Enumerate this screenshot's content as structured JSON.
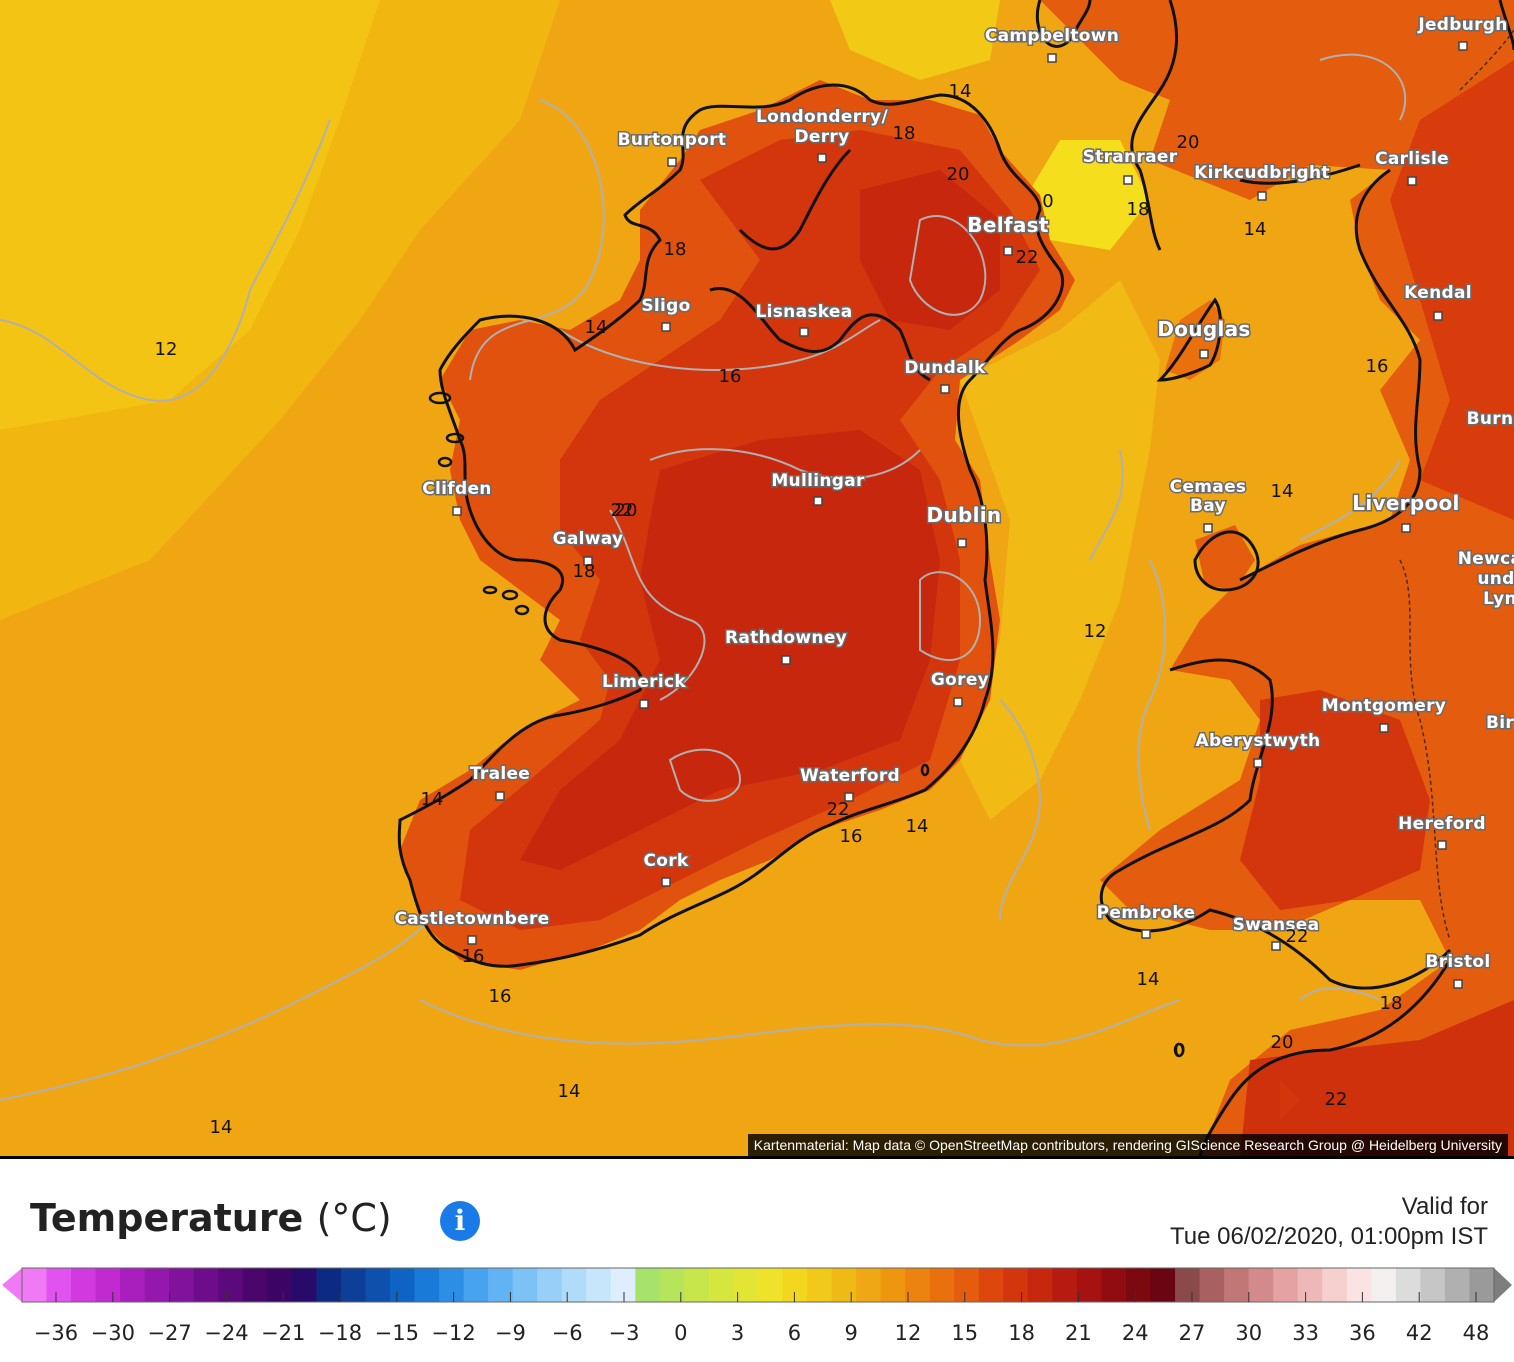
{
  "map": {
    "attribution": "Kartenmaterial: Map data © OpenStreetMap contributors, rendering GIScience Research Group @ Heidelberg University",
    "cities": [
      {
        "name": "Campbeltown"
      },
      {
        "name": "Jedburgh"
      },
      {
        "name": "Londonderry/"
      },
      {
        "name": "Derry"
      },
      {
        "name": "Burtonport"
      },
      {
        "name": "Stranraer"
      },
      {
        "name": "Kirkcudbright"
      },
      {
        "name": "Carlisle"
      },
      {
        "name": "Belfast"
      },
      {
        "name": "Sligo"
      },
      {
        "name": "Lisnaskea"
      },
      {
        "name": "Douglas"
      },
      {
        "name": "Kendal"
      },
      {
        "name": "Dundalk"
      },
      {
        "name": "Burn"
      },
      {
        "name": "Clifden"
      },
      {
        "name": "Mullingar"
      },
      {
        "name": "Cemaes"
      },
      {
        "name": "Bay"
      },
      {
        "name": "Liverpool"
      },
      {
        "name": "Galway"
      },
      {
        "name": "Dublin"
      },
      {
        "name": "Newca"
      },
      {
        "name": "und"
      },
      {
        "name": "Lyn"
      },
      {
        "name": "Rathdowney"
      },
      {
        "name": "Limerick"
      },
      {
        "name": "Gorey"
      },
      {
        "name": "Montgomery"
      },
      {
        "name": "Bir"
      },
      {
        "name": "Aberystwyth"
      },
      {
        "name": "Tralee"
      },
      {
        "name": "Waterford"
      },
      {
        "name": "Hereford"
      },
      {
        "name": "Cork"
      },
      {
        "name": "Pembroke"
      },
      {
        "name": "Swansea"
      },
      {
        "name": "Castletownbere"
      },
      {
        "name": "Bristol"
      }
    ],
    "contour_labels": [
      "12",
      "12",
      "14",
      "14",
      "14",
      "14",
      "14",
      "14",
      "14",
      "14",
      "14",
      "16",
      "16",
      "16",
      "16",
      "16",
      "18",
      "18",
      "18",
      "18",
      "18",
      "20",
      "20",
      "20",
      "20",
      "22",
      "22",
      "22",
      "22",
      "22",
      "0",
      "0"
    ]
  },
  "legend": {
    "title": "Temperature",
    "unit": "(°C)",
    "info_icon": "info-icon",
    "valid_line1": "Valid for",
    "valid_line2": "Tue 06/02/2020, 01:00pm IST",
    "tick_labels": [
      "−36",
      "−30",
      "−27",
      "−24",
      "−21",
      "−18",
      "−15",
      "−12",
      "−9",
      "−6",
      "−3",
      "0",
      "3",
      "6",
      "9",
      "12",
      "15",
      "18",
      "21",
      "24",
      "27",
      "30",
      "33",
      "36",
      "42",
      "48"
    ],
    "colors": [
      "#f07af5",
      "#e252f0",
      "#d23ae0",
      "#c02ad0",
      "#a91fbe",
      "#9418ad",
      "#80129c",
      "#6e0d8c",
      "#5c097c",
      "#4a066d",
      "#3c0464",
      "#270a6a",
      "#0d2a82",
      "#0d3e98",
      "#0d50ad",
      "#0e64c4",
      "#1a7ad8",
      "#2d8ee6",
      "#47a2ef",
      "#62b3f3",
      "#7cc2f5",
      "#96cff7",
      "#b0dcf9",
      "#c8e6fb",
      "#dfeefc",
      "#a7e36b",
      "#b6e45a",
      "#c6e64b",
      "#d5e63f",
      "#e2e534",
      "#eee22a",
      "#f3d71f",
      "#f1c91a",
      "#f0ba16",
      "#efa813",
      "#ee9610",
      "#ec830e",
      "#e9700d",
      "#e45c0d",
      "#dd470d",
      "#d3350d",
      "#c6270d",
      "#b71a0e",
      "#a5120f",
      "#910c10",
      "#7c0810",
      "#6a0611",
      "#8a4a4a",
      "#a86060",
      "#c27777",
      "#d38a8a",
      "#e4a2a2",
      "#efb8b8",
      "#f6cfcf",
      "#fbe3e3",
      "#f3f0ef",
      "#dcdcdc",
      "#c6c6c6",
      "#b0b0b0",
      "#9a9a9a"
    ],
    "right_arrow_color": "#7e7e7e"
  }
}
